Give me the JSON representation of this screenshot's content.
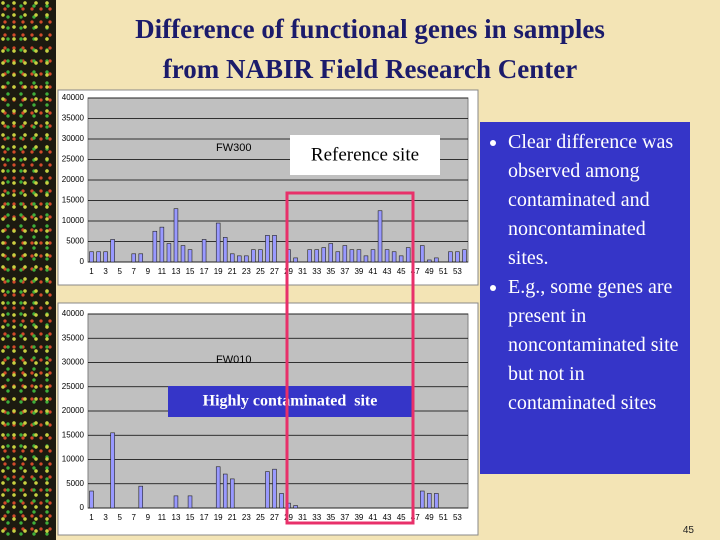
{
  "title": [
    "Difference of functional genes in samples",
    "from NABIR Field Research Center"
  ],
  "chart_data": [
    {
      "type": "bar",
      "color": "#9999ff",
      "annotations": [
        "FW300",
        "Reference site"
      ],
      "categories": [
        "1",
        null,
        "3",
        null,
        "5",
        null,
        "7",
        null,
        "9",
        null,
        "11",
        null,
        "13",
        null,
        "15",
        null,
        "17",
        null,
        "19",
        null,
        "21",
        null,
        "23",
        null,
        "25",
        null,
        "27",
        null,
        "29",
        null,
        "31",
        null,
        "33",
        null,
        "35",
        null,
        "37",
        null,
        "39",
        null,
        "41",
        null,
        "43",
        null,
        "45",
        null,
        "47",
        null,
        "49",
        null,
        "51",
        null,
        "53",
        null
      ],
      "values": [
        2500,
        2500,
        2500,
        5500,
        0,
        0,
        2000,
        2000,
        0,
        7500,
        8500,
        4500,
        13000,
        4000,
        3000,
        0,
        5500,
        0,
        9500,
        6000,
        2000,
        1500,
        1500,
        3000,
        3000,
        6500,
        6500,
        0,
        3000,
        1000,
        0,
        3000,
        3000,
        3500,
        4500,
        2500,
        4000,
        3000,
        3000,
        1500,
        3000,
        12500,
        3000,
        2500,
        1500,
        3500,
        0,
        4000,
        500,
        1000,
        0,
        2500,
        2500,
        3000
      ],
      "ylim": [
        0,
        40000
      ],
      "yticks": [
        0,
        5000,
        10000,
        15000,
        20000,
        25000,
        30000,
        35000,
        40000
      ],
      "grid": true
    },
    {
      "type": "bar",
      "color": "#9999ff",
      "annotations": [
        "FW010",
        "Highly contaminated  site"
      ],
      "categories": [
        "1",
        null,
        "3",
        null,
        "5",
        null,
        "7",
        null,
        "9",
        null,
        "11",
        null,
        "13",
        null,
        "15",
        null,
        "17",
        null,
        "19",
        null,
        "21",
        null,
        "23",
        null,
        "25",
        null,
        "27",
        null,
        "29",
        null,
        "31",
        null,
        "33",
        null,
        "35",
        null,
        "37",
        null,
        "39",
        null,
        "41",
        null,
        "43",
        null,
        "45",
        null,
        "47",
        null,
        "49",
        null,
        "51",
        null,
        "53",
        null
      ],
      "values": [
        3500,
        0,
        0,
        15500,
        0,
        0,
        0,
        4500,
        0,
        0,
        0,
        0,
        2500,
        0,
        2500,
        0,
        0,
        0,
        8500,
        7000,
        6000,
        0,
        0,
        0,
        0,
        7500,
        8000,
        3000,
        1000,
        500,
        0,
        0,
        0,
        0,
        0,
        0,
        0,
        0,
        0,
        0,
        0,
        0,
        0,
        0,
        0,
        0,
        0,
        3500,
        3000,
        3000,
        0,
        0,
        0,
        0
      ],
      "ylim": [
        0,
        40000
      ],
      "yticks": [
        0,
        5000,
        10000,
        15000,
        20000,
        25000,
        30000,
        35000,
        40000
      ],
      "grid": true
    }
  ],
  "bullets": [
    "Clear difference was observed among contaminated and noncontaminated sites.",
    "E.g., some genes are present in noncontaminated site but not in contaminated sites"
  ],
  "page_number": "45"
}
